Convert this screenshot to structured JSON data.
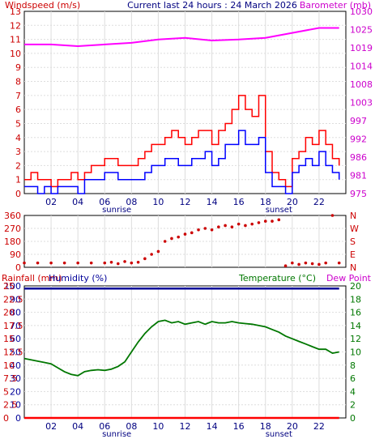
{
  "header": {
    "windspeed_label": "Windspeed (m/s)",
    "current_label": "Current last 24 hours : 24 March 2026",
    "barometer_label": "Barometer (mb)",
    "rainfall_label": "Rainfall (mm)",
    "humidity_label": "Humidity (%)",
    "temperature_label": "Temperature (°C)",
    "dewpoint_label": "Dew Point",
    "sunrise_label": "sunrise",
    "sunset_label": "sunset"
  },
  "colors": {
    "windspeed": "#ff0000",
    "windgust": "#ff0000",
    "windavg": "#0000ff",
    "barometer": "#ff00ff",
    "direction": "#cc0000",
    "humidity": "#000099",
    "rainfall": "#ff0000",
    "temperature": "#007700",
    "dewpoint": "#ff00ff",
    "grid": "#dddddd",
    "axis": "#000000"
  },
  "chart_data": [
    {
      "type": "line",
      "name": "wind-baro",
      "x_ticks": [
        "02",
        "04",
        "06",
        "08",
        "10",
        "12",
        "14",
        "16",
        "18",
        "20",
        "22"
      ],
      "x_range": [
        0,
        24
      ],
      "left_axis": {
        "title": "Windspeed (m/s)",
        "ticks": [
          "0",
          "1",
          "2",
          "3",
          "4",
          "5",
          "6",
          "7",
          "8",
          "9",
          "10",
          "11",
          "12",
          "13"
        ],
        "range": [
          0,
          13
        ]
      },
      "right_axis": {
        "title": "Barometer (mb)",
        "ticks": [
          "975",
          "981",
          "986",
          "992",
          "997",
          "1003",
          "1008",
          "1014",
          "1019",
          "1025",
          "1030"
        ],
        "range": [
          975,
          1030
        ]
      },
      "barometer": {
        "x": [
          0,
          2,
          4,
          6,
          8,
          10,
          12,
          14,
          16,
          18,
          20,
          22,
          23.5
        ],
        "y": [
          1020.0,
          1020.0,
          1019.5,
          1020.0,
          1020.5,
          1021.5,
          1022.0,
          1021.2,
          1021.5,
          1022.0,
          1023.5,
          1025.0,
          1025.0
        ]
      },
      "wind_gust": {
        "x": [
          0,
          0.5,
          1,
          1.5,
          2,
          2.5,
          3,
          3.5,
          4,
          4.5,
          5,
          5.5,
          6,
          6.5,
          7,
          7.5,
          8,
          8.5,
          9,
          9.5,
          10,
          10.5,
          11,
          11.5,
          12,
          12.5,
          13,
          13.5,
          14,
          14.5,
          15,
          15.5,
          16,
          16.5,
          17,
          17.5,
          18,
          18.5,
          19,
          19.5,
          20,
          20.5,
          21,
          21.5,
          22,
          22.5,
          23,
          23.5
        ],
        "y": [
          1,
          1.5,
          1,
          1,
          0.5,
          1,
          1,
          1.5,
          1,
          1.5,
          2,
          2,
          2.5,
          2.5,
          2,
          2,
          2,
          2.5,
          3,
          3.5,
          3.5,
          4,
          4.5,
          4,
          3.5,
          4,
          4.5,
          4.5,
          3.5,
          4.5,
          5,
          6,
          7,
          6,
          5.5,
          7,
          3,
          1.5,
          1,
          0.5,
          2.5,
          3,
          4,
          3.5,
          4.5,
          3.5,
          2.5,
          2
        ]
      },
      "wind_avg": {
        "x": [
          0,
          0.5,
          1,
          1.5,
          2,
          2.5,
          3,
          3.5,
          4,
          4.5,
          5,
          5.5,
          6,
          6.5,
          7,
          7.5,
          8,
          8.5,
          9,
          9.5,
          10,
          10.5,
          11,
          11.5,
          12,
          12.5,
          13,
          13.5,
          14,
          14.5,
          15,
          15.5,
          16,
          16.5,
          17,
          17.5,
          18,
          18.5,
          19,
          19.5,
          20,
          20.5,
          21,
          21.5,
          22,
          22.5,
          23,
          23.5
        ],
        "y": [
          0.5,
          0.5,
          0,
          0.5,
          0,
          0.5,
          0.5,
          0.5,
          0,
          1,
          1,
          1,
          1.5,
          1.5,
          1,
          1,
          1,
          1,
          1.5,
          2,
          2,
          2.5,
          2.5,
          2,
          2,
          2.5,
          2.5,
          3,
          2,
          2.5,
          3.5,
          3.5,
          4.5,
          3.5,
          3.5,
          4,
          1.5,
          0.5,
          0.5,
          0,
          1.5,
          2,
          2.5,
          2,
          3,
          2,
          1.5,
          1
        ]
      },
      "annotations": [
        "sunrise",
        "sunset"
      ]
    },
    {
      "type": "scatter",
      "name": "wind-direction",
      "left_axis": {
        "ticks": [
          "0",
          "90",
          "180",
          "270",
          "360"
        ],
        "range": [
          0,
          360
        ]
      },
      "right_axis": {
        "ticks": [
          "N",
          "E",
          "S",
          "W",
          "N"
        ]
      },
      "x": [
        0,
        1,
        2,
        3,
        4,
        5,
        6,
        6.5,
        7,
        7.5,
        8,
        8.5,
        9,
        9.5,
        10,
        10.5,
        11,
        11.5,
        12,
        12.5,
        13,
        13.5,
        14,
        14.5,
        15,
        15.5,
        16,
        16.5,
        17,
        17.5,
        18,
        18.5,
        19,
        19.5,
        20,
        20.5,
        21,
        21.5,
        22,
        22.5,
        23,
        23.5
      ],
      "y": [
        30,
        30,
        30,
        30,
        30,
        30,
        30,
        35,
        25,
        40,
        30,
        35,
        60,
        90,
        110,
        180,
        200,
        210,
        230,
        240,
        260,
        270,
        260,
        280,
        290,
        280,
        300,
        290,
        300,
        310,
        320,
        320,
        330,
        10,
        30,
        20,
        30,
        25,
        20,
        30,
        360,
        30
      ]
    },
    {
      "type": "line",
      "name": "temp-humidity",
      "left_axis": {
        "title": "Humidity (%)",
        "ticks": [
          "0",
          "10",
          "20",
          "30",
          "40",
          "50",
          "60",
          "70",
          "80",
          "90",
          "100"
        ],
        "range": [
          0,
          100
        ]
      },
      "rain_axis": {
        "title": "Rainfall (mm)",
        "ticks": [
          "0",
          "2.5",
          "5",
          "7.5",
          "10",
          "12.5",
          "15",
          "17.5",
          "20",
          "22.5",
          "25"
        ],
        "range": [
          0,
          25
        ]
      },
      "right_axis": {
        "title": "Temperature (°C)",
        "ticks": [
          "0",
          "2",
          "4",
          "6",
          "8",
          "10",
          "12",
          "14",
          "16",
          "18",
          "20"
        ],
        "range": [
          0,
          20
        ]
      },
      "humidity": {
        "x": [
          0,
          23.5
        ],
        "y": [
          98,
          98
        ]
      },
      "rainfall": {
        "x": [
          0,
          23.5
        ],
        "y": [
          0,
          0
        ]
      },
      "temperature": {
        "x": [
          0,
          0.5,
          1,
          1.5,
          2,
          2.5,
          3,
          3.5,
          4,
          4.5,
          5,
          5.5,
          6,
          6.5,
          7,
          7.5,
          8,
          8.5,
          9,
          9.5,
          10,
          10.5,
          11,
          11.5,
          12,
          12.5,
          13,
          13.5,
          14,
          14.5,
          15,
          15.5,
          16,
          16.5,
          17,
          17.5,
          18,
          18.5,
          19,
          19.5,
          20,
          20.5,
          21,
          21.5,
          22,
          22.5,
          23,
          23.5
        ],
        "y": [
          9,
          8.8,
          8.6,
          8.4,
          8.2,
          7.6,
          7,
          6.6,
          6.4,
          7,
          7.2,
          7.3,
          7.2,
          7.4,
          7.8,
          8.5,
          10,
          11.5,
          12.8,
          13.8,
          14.6,
          14.8,
          14.4,
          14.6,
          14.2,
          14.4,
          14.6,
          14.2,
          14.6,
          14.4,
          14.4,
          14.6,
          14.4,
          14.3,
          14.2,
          14.0,
          13.8,
          13.4,
          13,
          12.4,
          12,
          11.6,
          11.2,
          10.8,
          10.4,
          10.4,
          9.8,
          10
        ]
      },
      "annotations": [
        "sunrise",
        "sunset"
      ]
    }
  ]
}
